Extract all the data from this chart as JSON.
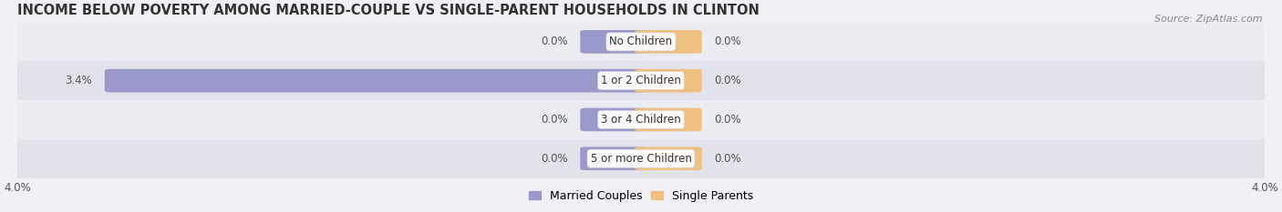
{
  "title": "INCOME BELOW POVERTY AMONG MARRIED-COUPLE VS SINGLE-PARENT HOUSEHOLDS IN CLINTON",
  "source": "Source: ZipAtlas.com",
  "categories": [
    "No Children",
    "1 or 2 Children",
    "3 or 4 Children",
    "5 or more Children"
  ],
  "married_values": [
    0.0,
    3.4,
    0.0,
    0.0
  ],
  "single_values": [
    0.0,
    0.0,
    0.0,
    0.0
  ],
  "married_color": "#9999cc",
  "single_color": "#f0c080",
  "row_bg_colors": [
    "#ebebf2",
    "#e2e2ea"
  ],
  "fig_bg_color": "#f0f0f5",
  "axis_limit": 4.0,
  "title_fontsize": 10.5,
  "source_fontsize": 8,
  "label_fontsize": 8.5,
  "category_fontsize": 8.5,
  "legend_fontsize": 9,
  "bar_height": 0.52,
  "zero_bar_width": 0.35,
  "figsize": [
    14.06,
    2.33
  ],
  "dpi": 100
}
